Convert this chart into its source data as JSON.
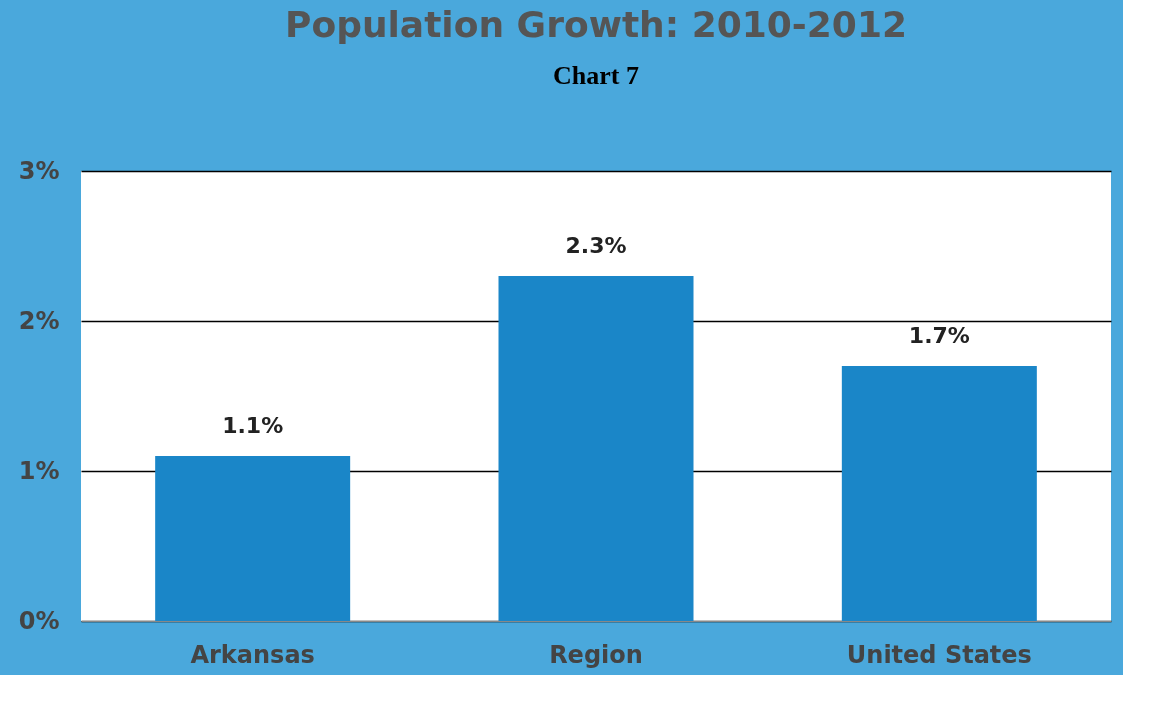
{
  "chart_data": {
    "type": "bar",
    "title": "Population Growth: 2010-2012",
    "annotations": [
      "Chart 7"
    ],
    "categories": [
      "Arkansas",
      "Region",
      "United States"
    ],
    "values": [
      1.1,
      2.3,
      1.7
    ],
    "value_labels": [
      "1.1%",
      "2.3%",
      "1.7%"
    ],
    "color": "#1a86c8",
    "ylim": [
      0,
      3
    ],
    "yticks": [
      {
        "value": 0,
        "label": "0%"
      },
      {
        "value": 1,
        "label": "1%"
      },
      {
        "value": 2,
        "label": "2%"
      },
      {
        "value": 3,
        "label": "3%"
      }
    ],
    "grid": "y"
  }
}
